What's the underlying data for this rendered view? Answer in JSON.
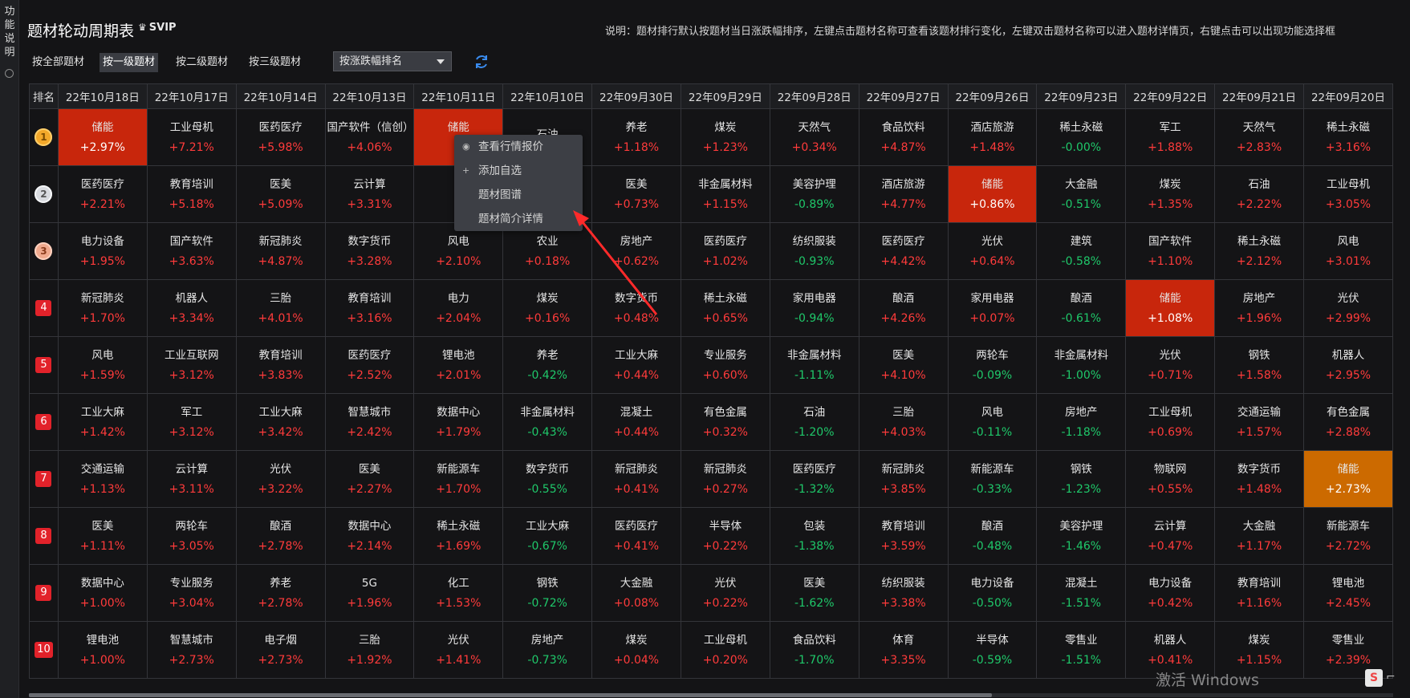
{
  "sidebar": {
    "label": "功能说明"
  },
  "header": {
    "title": "题材轮动周期表",
    "badge": "SVIP",
    "description": "说明：题材排行默认按题材当日涨跌幅排序，左键点击题材名称可查看该题材排行变化，左键双击题材名称可以进入题材详情页，右键点击可以出现功能选择框"
  },
  "toolbar": {
    "levels": [
      "按全部题材",
      "按一级题材",
      "按二级题材",
      "按三级题材"
    ],
    "active_level": 1,
    "sort_label": "按涨跌幅排名"
  },
  "table": {
    "rank_header": "排名",
    "dates": [
      "22年10月18日",
      "22年10月17日",
      "22年10月14日",
      "22年10月13日",
      "22年10月11日",
      "22年10月10日",
      "22年09月30日",
      "22年09月29日",
      "22年09月28日",
      "22年09月27日",
      "22年09月26日",
      "22年09月23日",
      "22年09月22日",
      "22年09月21日",
      "22年09月20日"
    ],
    "rows": [
      {
        "rank": "1",
        "cells": [
          [
            "储能",
            "+2.97%"
          ],
          [
            "工业母机",
            "+7.21%"
          ],
          [
            "医药医疗",
            "+5.98%"
          ],
          [
            "国产软件（信创）",
            "+4.06%"
          ],
          [
            "储能",
            "+"
          ],
          [
            "石油",
            ""
          ],
          [
            "养老",
            "+1.18%"
          ],
          [
            "煤炭",
            "+1.23%"
          ],
          [
            "天然气",
            "+0.34%"
          ],
          [
            "食品饮料",
            "+4.87%"
          ],
          [
            "酒店旅游",
            "+1.48%"
          ],
          [
            "稀土永磁",
            "-0.00%"
          ],
          [
            "军工",
            "+1.88%"
          ],
          [
            "天然气",
            "+2.83%"
          ],
          [
            "稀土永磁",
            "+3.16%"
          ]
        ]
      },
      {
        "rank": "2",
        "cells": [
          [
            "医药医疗",
            "+2.21%"
          ],
          [
            "教育培训",
            "+5.18%"
          ],
          [
            "医美",
            "+5.09%"
          ],
          [
            "云计算",
            "+3.31%"
          ],
          [
            "电",
            ""
          ],
          [
            "",
            ""
          ],
          [
            "医美",
            "+0.73%"
          ],
          [
            "非金属材料",
            "+1.15%"
          ],
          [
            "美容护理",
            "-0.89%"
          ],
          [
            "酒店旅游",
            "+4.77%"
          ],
          [
            "储能",
            "+0.86%"
          ],
          [
            "大金融",
            "-0.51%"
          ],
          [
            "煤炭",
            "+1.35%"
          ],
          [
            "石油",
            "+2.22%"
          ],
          [
            "工业母机",
            "+3.05%"
          ]
        ]
      },
      {
        "rank": "3",
        "cells": [
          [
            "电力设备",
            "+1.95%"
          ],
          [
            "国产软件",
            "+3.63%"
          ],
          [
            "新冠肺炎",
            "+4.87%"
          ],
          [
            "数字货币",
            "+3.28%"
          ],
          [
            "风电",
            "+2.10%"
          ],
          [
            "农业",
            "+0.18%"
          ],
          [
            "房地产",
            "+0.62%"
          ],
          [
            "医药医疗",
            "+1.02%"
          ],
          [
            "纺织服装",
            "-0.93%"
          ],
          [
            "医药医疗",
            "+4.42%"
          ],
          [
            "光伏",
            "+0.64%"
          ],
          [
            "建筑",
            "-0.58%"
          ],
          [
            "国产软件",
            "+1.10%"
          ],
          [
            "稀土永磁",
            "+2.12%"
          ],
          [
            "风电",
            "+3.01%"
          ]
        ]
      },
      {
        "rank": "4",
        "cells": [
          [
            "新冠肺炎",
            "+1.70%"
          ],
          [
            "机器人",
            "+3.34%"
          ],
          [
            "三胎",
            "+4.01%"
          ],
          [
            "教育培训",
            "+3.16%"
          ],
          [
            "电力",
            "+2.04%"
          ],
          [
            "煤炭",
            "+0.16%"
          ],
          [
            "数字货币",
            "+0.48%"
          ],
          [
            "稀土永磁",
            "+0.65%"
          ],
          [
            "家用电器",
            "-0.94%"
          ],
          [
            "酿酒",
            "+4.26%"
          ],
          [
            "家用电器",
            "+0.07%"
          ],
          [
            "酿酒",
            "-0.61%"
          ],
          [
            "储能",
            "+1.08%"
          ],
          [
            "房地产",
            "+1.96%"
          ],
          [
            "光伏",
            "+2.99%"
          ]
        ]
      },
      {
        "rank": "5",
        "cells": [
          [
            "风电",
            "+1.59%"
          ],
          [
            "工业互联网",
            "+3.12%"
          ],
          [
            "教育培训",
            "+3.83%"
          ],
          [
            "医药医疗",
            "+2.52%"
          ],
          [
            "锂电池",
            "+2.01%"
          ],
          [
            "养老",
            "-0.42%"
          ],
          [
            "工业大麻",
            "+0.44%"
          ],
          [
            "专业服务",
            "+0.60%"
          ],
          [
            "非金属材料",
            "-1.11%"
          ],
          [
            "医美",
            "+4.10%"
          ],
          [
            "两轮车",
            "-0.09%"
          ],
          [
            "非金属材料",
            "-1.00%"
          ],
          [
            "光伏",
            "+0.71%"
          ],
          [
            "钢铁",
            "+1.58%"
          ],
          [
            "机器人",
            "+2.95%"
          ]
        ]
      },
      {
        "rank": "6",
        "cells": [
          [
            "工业大麻",
            "+1.42%"
          ],
          [
            "军工",
            "+3.12%"
          ],
          [
            "工业大麻",
            "+3.42%"
          ],
          [
            "智慧城市",
            "+2.42%"
          ],
          [
            "数据中心",
            "+1.79%"
          ],
          [
            "非金属材料",
            "-0.43%"
          ],
          [
            "混凝土",
            "+0.44%"
          ],
          [
            "有色金属",
            "+0.32%"
          ],
          [
            "石油",
            "-1.20%"
          ],
          [
            "三胎",
            "+4.03%"
          ],
          [
            "风电",
            "-0.11%"
          ],
          [
            "房地产",
            "-1.18%"
          ],
          [
            "工业母机",
            "+0.69%"
          ],
          [
            "交通运输",
            "+1.57%"
          ],
          [
            "有色金属",
            "+2.88%"
          ]
        ]
      },
      {
        "rank": "7",
        "cells": [
          [
            "交通运输",
            "+1.13%"
          ],
          [
            "云计算",
            "+3.11%"
          ],
          [
            "光伏",
            "+3.22%"
          ],
          [
            "医美",
            "+2.27%"
          ],
          [
            "新能源车",
            "+1.70%"
          ],
          [
            "数字货币",
            "-0.55%"
          ],
          [
            "新冠肺炎",
            "+0.41%"
          ],
          [
            "新冠肺炎",
            "+0.27%"
          ],
          [
            "医药医疗",
            "-1.32%"
          ],
          [
            "新冠肺炎",
            "+3.85%"
          ],
          [
            "新能源车",
            "-0.33%"
          ],
          [
            "钢铁",
            "-1.23%"
          ],
          [
            "物联网",
            "+0.55%"
          ],
          [
            "数字货币",
            "+1.48%"
          ],
          [
            "储能",
            "+2.73%"
          ]
        ]
      },
      {
        "rank": "8",
        "cells": [
          [
            "医美",
            "+1.11%"
          ],
          [
            "两轮车",
            "+3.05%"
          ],
          [
            "酿酒",
            "+2.78%"
          ],
          [
            "数据中心",
            "+2.14%"
          ],
          [
            "稀土永磁",
            "+1.69%"
          ],
          [
            "工业大麻",
            "-0.67%"
          ],
          [
            "医药医疗",
            "+0.41%"
          ],
          [
            "半导体",
            "+0.22%"
          ],
          [
            "包装",
            "-1.38%"
          ],
          [
            "教育培训",
            "+3.59%"
          ],
          [
            "酿酒",
            "-0.48%"
          ],
          [
            "美容护理",
            "-1.46%"
          ],
          [
            "云计算",
            "+0.47%"
          ],
          [
            "大金融",
            "+1.17%"
          ],
          [
            "新能源车",
            "+2.72%"
          ]
        ]
      },
      {
        "rank": "9",
        "cells": [
          [
            "数据中心",
            "+1.00%"
          ],
          [
            "专业服务",
            "+3.04%"
          ],
          [
            "养老",
            "+2.78%"
          ],
          [
            "5G",
            "+1.96%"
          ],
          [
            "化工",
            "+1.53%"
          ],
          [
            "钢铁",
            "-0.72%"
          ],
          [
            "大金融",
            "+0.08%"
          ],
          [
            "光伏",
            "+0.22%"
          ],
          [
            "医美",
            "-1.62%"
          ],
          [
            "纺织服装",
            "+3.38%"
          ],
          [
            "电力设备",
            "-0.50%"
          ],
          [
            "混凝土",
            "-1.51%"
          ],
          [
            "电力设备",
            "+0.42%"
          ],
          [
            "教育培训",
            "+1.16%"
          ],
          [
            "锂电池",
            "+2.45%"
          ]
        ]
      },
      {
        "rank": "10",
        "cells": [
          [
            "锂电池",
            "+1.00%"
          ],
          [
            "智慧城市",
            "+2.73%"
          ],
          [
            "电子烟",
            "+2.73%"
          ],
          [
            "三胎",
            "+1.92%"
          ],
          [
            "光伏",
            "+1.41%"
          ],
          [
            "房地产",
            "-0.73%"
          ],
          [
            "煤炭",
            "+0.04%"
          ],
          [
            "工业母机",
            "+0.20%"
          ],
          [
            "食品饮料",
            "-1.70%"
          ],
          [
            "体育",
            "+3.35%"
          ],
          [
            "半导体",
            "-0.59%"
          ],
          [
            "零售业",
            "-1.51%"
          ],
          [
            "机器人",
            "+0.41%"
          ],
          [
            "煤炭",
            "+1.15%"
          ],
          [
            "零售业",
            "+2.39%"
          ]
        ]
      }
    ],
    "highlights": [
      {
        "row": 0,
        "col": 0,
        "color": "#c8260c"
      },
      {
        "row": 0,
        "col": 4,
        "color": "#c8260c"
      },
      {
        "row": 1,
        "col": 10,
        "color": "#c8260c"
      },
      {
        "row": 3,
        "col": 12,
        "color": "#c8260c"
      },
      {
        "row": 6,
        "col": 14,
        "color": "#cc6a00"
      }
    ]
  },
  "context_menu": {
    "items": [
      {
        "label": "查看行情报价",
        "icon": "eye-icon"
      },
      {
        "label": "添加自选",
        "icon": "plus-icon"
      },
      {
        "label": "题材图谱",
        "icon": ""
      },
      {
        "label": "题材简介详情",
        "icon": ""
      }
    ]
  },
  "watermark": "激活 Windows"
}
